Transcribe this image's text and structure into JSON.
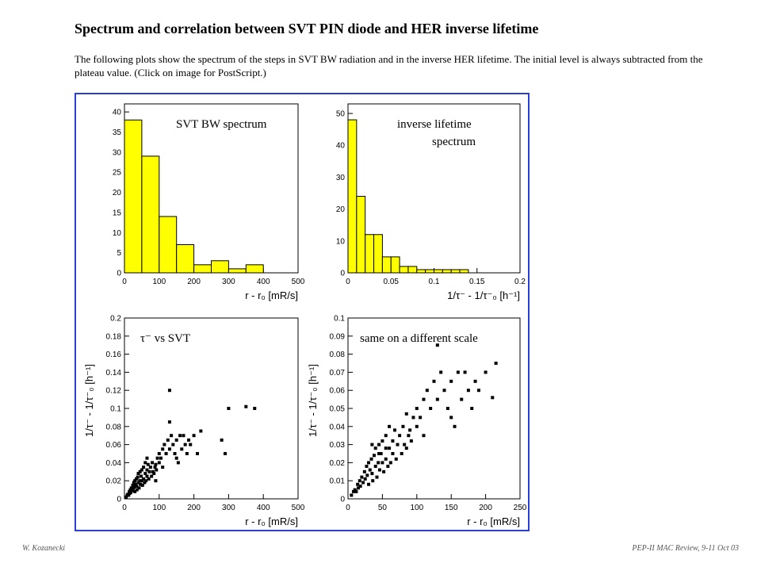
{
  "page": {
    "title": "Spectrum and correlation between SVT PIN diode and HER inverse lifetime",
    "intro": "The following plots show the spectrum of the steps in SVT BW radiation and in the inverse HER lifetime. The initial level is always subtracted from the plateau value. (Click on image for PostScript.)",
    "footer_left": "W. Kozanecki",
    "footer_right": "PEP-II MAC Review, 9-11 Oct 03"
  },
  "colors": {
    "histogram_fill": "#ffff00",
    "frame_border": "#2b3fd6",
    "marker": "#000000"
  },
  "chart_data": [
    {
      "type": "bar",
      "title": "SVT BW spectrum",
      "xlabel": "r - r₀ [mR/s]",
      "ylabel": "",
      "xlim": [
        0,
        500
      ],
      "ylim": [
        0,
        42
      ],
      "xticks": [
        "0",
        "100",
        "200",
        "300",
        "400",
        "500"
      ],
      "yticks": [
        "0",
        "5",
        "10",
        "15",
        "20",
        "25",
        "30",
        "35",
        "40"
      ],
      "bin_edges": [
        0,
        50,
        100,
        150,
        200,
        250,
        300,
        350,
        400
      ],
      "values": [
        38,
        29,
        14,
        7,
        2,
        3,
        1,
        2
      ]
    },
    {
      "type": "bar",
      "title": "inverse lifetime spectrum",
      "xlabel": "1/τ⁻ - 1/τ⁻₀ [h⁻¹]",
      "ylabel": "",
      "xlim": [
        0,
        0.2
      ],
      "ylim": [
        0,
        53
      ],
      "xticks": [
        "0",
        "0.05",
        "0.1",
        "0.15",
        "0.2"
      ],
      "yticks": [
        "0",
        "10",
        "20",
        "30",
        "40",
        "50"
      ],
      "bin_edges": [
        0,
        0.01,
        0.02,
        0.03,
        0.04,
        0.05,
        0.06,
        0.07,
        0.08,
        0.09,
        0.1,
        0.11,
        0.12,
        0.13,
        0.14
      ],
      "values": [
        48,
        24,
        12,
        12,
        5,
        5,
        2,
        2,
        1,
        1,
        1,
        1,
        1,
        1
      ]
    },
    {
      "type": "scatter",
      "title": "τ⁻ vs SVT",
      "xlabel": "r - r₀ [mR/s]",
      "ylabel": "1/τ⁻ - 1/τ⁻₀ [h⁻¹]",
      "xlim": [
        0,
        500
      ],
      "ylim": [
        0,
        0.2
      ],
      "xticks": [
        "0",
        "100",
        "200",
        "300",
        "400",
        "500"
      ],
      "yticks": [
        "0",
        "0.02",
        "0.04",
        "0.06",
        "0.08",
        "0.1",
        "0.12",
        "0.14",
        "0.16",
        "0.18",
        "0.2"
      ],
      "x": [
        5,
        8,
        10,
        12,
        14,
        15,
        17,
        18,
        20,
        22,
        24,
        25,
        27,
        28,
        30,
        30,
        32,
        34,
        35,
        36,
        38,
        40,
        40,
        42,
        44,
        45,
        46,
        48,
        50,
        50,
        52,
        55,
        55,
        58,
        60,
        60,
        62,
        65,
        65,
        68,
        70,
        72,
        75,
        78,
        80,
        82,
        85,
        88,
        90,
        92,
        95,
        100,
        100,
        105,
        110,
        110,
        115,
        120,
        125,
        130,
        130,
        135,
        140,
        145,
        150,
        150,
        155,
        160,
        165,
        170,
        175,
        180,
        185,
        190,
        200,
        210,
        220,
        280,
        290,
        300,
        350,
        375,
        130,
        65,
        90
      ],
      "y": [
        0.002,
        0.004,
        0.005,
        0.004,
        0.008,
        0.006,
        0.01,
        0.007,
        0.012,
        0.009,
        0.015,
        0.011,
        0.018,
        0.013,
        0.02,
        0.008,
        0.016,
        0.022,
        0.014,
        0.01,
        0.024,
        0.018,
        0.028,
        0.012,
        0.02,
        0.03,
        0.016,
        0.025,
        0.02,
        0.032,
        0.015,
        0.022,
        0.035,
        0.018,
        0.028,
        0.04,
        0.02,
        0.025,
        0.032,
        0.038,
        0.022,
        0.03,
        0.035,
        0.025,
        0.04,
        0.03,
        0.028,
        0.035,
        0.038,
        0.032,
        0.045,
        0.04,
        0.05,
        0.045,
        0.055,
        0.035,
        0.06,
        0.05,
        0.065,
        0.055,
        0.085,
        0.07,
        0.06,
        0.05,
        0.045,
        0.065,
        0.04,
        0.07,
        0.055,
        0.07,
        0.06,
        0.05,
        0.065,
        0.06,
        0.07,
        0.05,
        0.075,
        0.065,
        0.05,
        0.1,
        0.102,
        0.1,
        0.12,
        0.045,
        0.02
      ]
    },
    {
      "type": "scatter",
      "title": "same on a different scale",
      "xlabel": "r - r₀ [mR/s]",
      "ylabel": "1/τ⁻ - 1/τ⁻₀ [h⁻¹]",
      "xlim": [
        0,
        250
      ],
      "ylim": [
        0,
        0.1
      ],
      "xticks": [
        "0",
        "50",
        "100",
        "150",
        "200",
        "250"
      ],
      "yticks": [
        "0",
        "0.01",
        "0.02",
        "0.03",
        "0.04",
        "0.05",
        "0.06",
        "0.07",
        "0.08",
        "0.09",
        "0.1"
      ],
      "x": [
        5,
        8,
        10,
        12,
        14,
        15,
        17,
        18,
        20,
        22,
        24,
        25,
        27,
        28,
        30,
        30,
        32,
        34,
        35,
        36,
        38,
        40,
        40,
        42,
        44,
        45,
        46,
        48,
        50,
        50,
        52,
        55,
        55,
        58,
        60,
        60,
        62,
        65,
        65,
        68,
        70,
        72,
        75,
        78,
        80,
        82,
        85,
        88,
        90,
        92,
        95,
        100,
        100,
        105,
        110,
        110,
        115,
        120,
        125,
        130,
        130,
        135,
        140,
        145,
        150,
        150,
        155,
        160,
        165,
        170,
        175,
        180,
        185,
        190,
        200,
        210,
        215,
        35,
        45,
        55,
        85
      ],
      "y": [
        0.002,
        0.004,
        0.005,
        0.004,
        0.008,
        0.006,
        0.01,
        0.007,
        0.012,
        0.009,
        0.015,
        0.011,
        0.018,
        0.013,
        0.02,
        0.008,
        0.016,
        0.022,
        0.014,
        0.01,
        0.024,
        0.018,
        0.028,
        0.012,
        0.02,
        0.03,
        0.016,
        0.025,
        0.02,
        0.032,
        0.015,
        0.022,
        0.035,
        0.018,
        0.028,
        0.04,
        0.02,
        0.025,
        0.032,
        0.038,
        0.022,
        0.03,
        0.035,
        0.025,
        0.04,
        0.03,
        0.028,
        0.035,
        0.038,
        0.032,
        0.045,
        0.04,
        0.05,
        0.045,
        0.055,
        0.035,
        0.06,
        0.05,
        0.065,
        0.055,
        0.085,
        0.07,
        0.06,
        0.05,
        0.045,
        0.065,
        0.04,
        0.07,
        0.055,
        0.07,
        0.06,
        0.05,
        0.065,
        0.06,
        0.07,
        0.056,
        0.075,
        0.03,
        0.025,
        0.028,
        0.047
      ]
    }
  ]
}
